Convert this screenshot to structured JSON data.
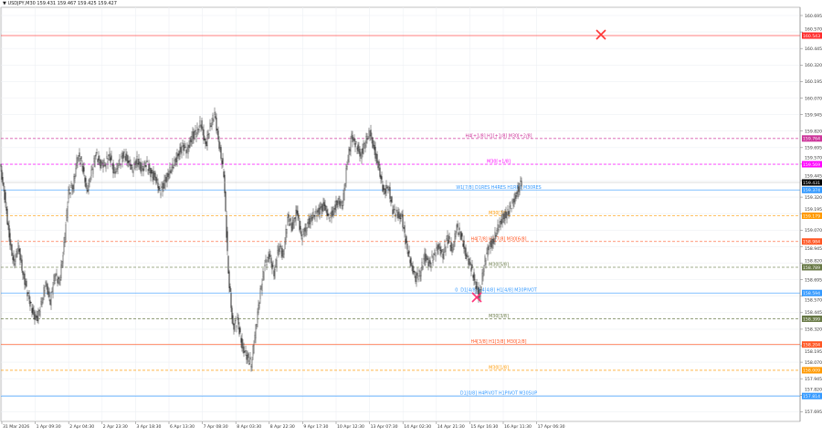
{
  "header": {
    "symbol": "USDJPY,M30",
    "ohlc": "159.431 159.467 159.425 159.427"
  },
  "chart_data": {
    "type": "candlestick",
    "symbol": "USDJPY",
    "timeframe": "M30",
    "ylim": [
      157.62,
      160.77
    ],
    "grid": true,
    "y_ticks": [
      "160.695",
      "160.570",
      "160.445",
      "160.320",
      "160.195",
      "160.070",
      "159.945",
      "159.820",
      "159.695",
      "159.570",
      "159.445",
      "159.320",
      "159.195",
      "159.070",
      "158.945",
      "158.820",
      "158.695",
      "158.570",
      "158.445",
      "158.320",
      "158.195",
      "158.070",
      "157.945",
      "157.820",
      "157.695"
    ],
    "x_ticks": [
      "31 Mar 2026",
      "1 Apr 09:30",
      "2 Apr 04:30",
      "2 Apr 23:30",
      "3 Apr 18:30",
      "6 Apr 13:30",
      "7 Apr 08:30",
      "8 Apr 03:30",
      "8 Apr 22:30",
      "9 Apr 17:30",
      "10 Apr 12:30",
      "13 Apr 07:30",
      "14 Apr 02:30",
      "14 Apr 21:30",
      "15 Apr 16:30",
      "16 Apr 11:30",
      "17 Apr 06:30"
    ],
    "close_approx": [
      159.57,
      159.33,
      159.02,
      158.81,
      158.95,
      158.74,
      158.6,
      158.46,
      158.39,
      158.5,
      158.67,
      158.53,
      158.74,
      158.67,
      158.95,
      159.36,
      159.4,
      159.64,
      159.57,
      159.36,
      159.5,
      159.64,
      159.57,
      159.57,
      159.64,
      159.5,
      159.57,
      159.64,
      159.6,
      159.53,
      159.6,
      159.53,
      159.57,
      159.5,
      159.47,
      159.36,
      159.43,
      159.5,
      159.57,
      159.64,
      159.71,
      159.67,
      159.78,
      159.81,
      159.88,
      159.71,
      159.85,
      159.95,
      159.71,
      159.5,
      158.74,
      158.33,
      158.39,
      158.19,
      158.12,
      158.05,
      158.33,
      158.6,
      158.81,
      158.88,
      158.74,
      158.95,
      158.88,
      159.16,
      159.09,
      159.22,
      159.02,
      159.09,
      159.16,
      159.19,
      159.22,
      159.26,
      159.16,
      159.22,
      159.29,
      159.26,
      159.57,
      159.78,
      159.71,
      159.64,
      159.74,
      159.81,
      159.67,
      159.53,
      159.36,
      159.4,
      159.22,
      159.19,
      159.16,
      158.95,
      158.81,
      158.71,
      158.74,
      158.88,
      158.81,
      158.88,
      158.95,
      158.88,
      159.02,
      158.91,
      159.09,
      159.02,
      158.88,
      158.81,
      158.67,
      158.57,
      158.81,
      158.95,
      158.98,
      159.09,
      159.16,
      159.19,
      159.26,
      159.33,
      159.43
    ],
    "current_price": "159.431",
    "levels": [
      {
        "price": 160.543,
        "label": "",
        "axis_label": "160.543",
        "color": "#ff2a2a",
        "dash": false
      },
      {
        "price": 159.764,
        "label": "H4[+1/8] H1[+1/8] M30[+2/8]",
        "axis_label": "159.764",
        "color": "#cc3399",
        "dash": true
      },
      {
        "price": 159.569,
        "label": "M30[+1/8]",
        "axis_label": "159.569",
        "color": "#ff00ff",
        "dash": true
      },
      {
        "price": 159.374,
        "label": "W1[7/8] D1RES H4RES H1RES M30RES",
        "axis_label": "159.374",
        "color": "#3399ff",
        "dash": false
      },
      {
        "price": 159.179,
        "label": "M30[7/8]",
        "axis_label": "159.179",
        "color": "#ff9900",
        "dash": true
      },
      {
        "price": 158.984,
        "label": "H4[7/8] H1[7/8] M30[6/8]",
        "axis_label": "158.984",
        "color": "#ff5522",
        "dash": true
      },
      {
        "price": 158.789,
        "label": "M30[5/8]",
        "axis_label": "158.789",
        "color": "#667744",
        "dash": true
      },
      {
        "price": 158.594,
        "label": "D1[4/8] H4[4/8] H1[4/8] M30PIVOT",
        "axis_label": "158.594",
        "color": "#3399ff",
        "dash": false
      },
      {
        "price": 158.399,
        "label": "M30[3/8]",
        "axis_label": "158.399",
        "color": "#667744",
        "dash": true
      },
      {
        "price": 158.204,
        "label": "H4[3/8] H1[3/8] M30[2/8]",
        "axis_label": "158.204",
        "color": "#ff5522",
        "dash": false
      },
      {
        "price": 158.009,
        "label": "M30[1/8]",
        "axis_label": "158.009",
        "color": "#ff9900",
        "dash": true
      },
      {
        "price": 157.814,
        "label": "D1[0/8] H4PIVOT H1PIVOT M30SUP",
        "axis_label": "157.814",
        "color": "#3399ff",
        "dash": false
      }
    ],
    "pivot_zero_label": "0",
    "colors": {
      "candle": "#333333",
      "grid": "#eef0f4",
      "axis": "#888888",
      "current": "#000000"
    }
  }
}
